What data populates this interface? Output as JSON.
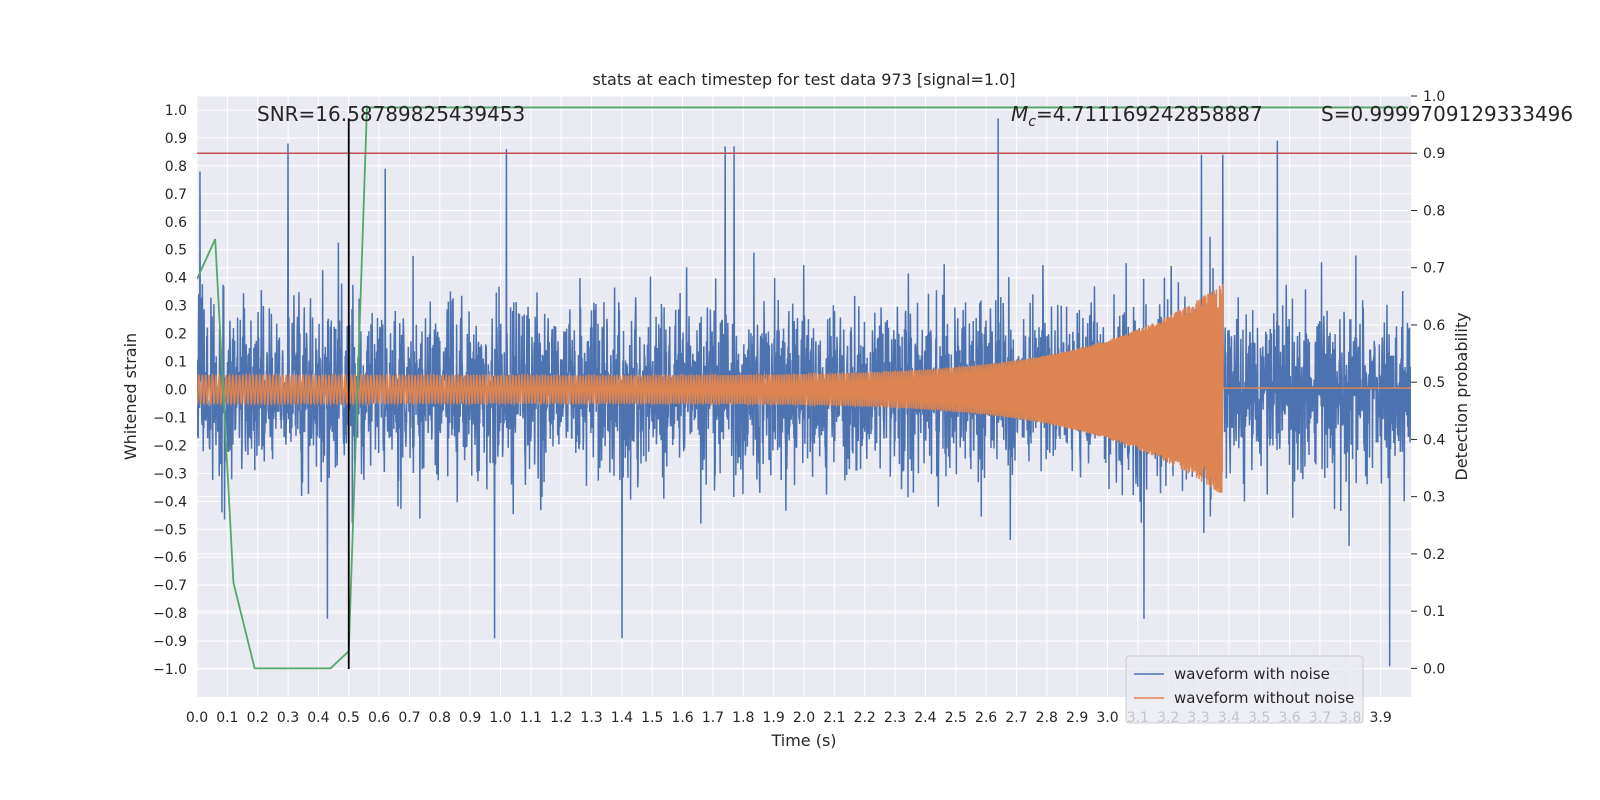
{
  "chart_data": {
    "type": "line",
    "title": "stats at each timestep for test data 973 [signal=1.0]",
    "xlabel": "Time (s)",
    "ylabel": "Whitened strain",
    "y2label": "Detection probability",
    "xlim": [
      0.0,
      4.0
    ],
    "ylim": [
      -1.1,
      1.05
    ],
    "y2lim": [
      -0.05,
      1.0
    ],
    "x_ticks": [
      0.0,
      0.1,
      0.2,
      0.3,
      0.4,
      0.5,
      0.6,
      0.7,
      0.8,
      0.9,
      1.0,
      1.1,
      1.2,
      1.3,
      1.4,
      1.5,
      1.6,
      1.7,
      1.8,
      1.9,
      2.0,
      2.1,
      2.2,
      2.3,
      2.4,
      2.5,
      2.6,
      2.7,
      2.8,
      2.9,
      3.0,
      3.1,
      3.2,
      3.3,
      3.4,
      3.5,
      3.6,
      3.7,
      3.8,
      3.9
    ],
    "y_ticks": [
      -1.0,
      -0.9,
      -0.8,
      -0.7,
      -0.6,
      -0.5,
      -0.4,
      -0.3,
      -0.2,
      -0.1,
      0.0,
      0.1,
      0.2,
      0.3,
      0.4,
      0.5,
      0.6,
      0.7,
      0.8,
      0.9,
      1.0
    ],
    "y2_ticks": [
      0.0,
      0.1,
      0.2,
      0.3,
      0.4,
      0.5,
      0.6,
      0.7,
      0.8,
      0.9,
      1.0
    ],
    "annotations": {
      "snr": "SNR=16.58789825439453",
      "mc_symbol": "M",
      "mc_sub": "c",
      "mc_value": "=4.711169242858887",
      "s": "S=0.9999709129333496"
    },
    "threshold": {
      "y2": 0.9,
      "color": "#c44e52"
    },
    "marker_line": {
      "x": 0.5,
      "y_range": [
        -1.0,
        0.97
      ],
      "color": "#000000"
    },
    "series": [
      {
        "name": "waveform with noise",
        "color": "#4c72b0",
        "description": "whitened strain noise, amplitude envelope ~0.4, peak spikes listed",
        "spikes": [
          {
            "x": 0.01,
            "y": 0.78
          },
          {
            "x": 0.3,
            "y": 0.88
          },
          {
            "x": 0.43,
            "y": -0.82
          },
          {
            "x": 0.62,
            "y": 0.79
          },
          {
            "x": 1.02,
            "y": 0.86
          },
          {
            "x": 0.98,
            "y": -0.89
          },
          {
            "x": 1.4,
            "y": -0.89
          },
          {
            "x": 1.74,
            "y": 0.87
          },
          {
            "x": 1.77,
            "y": 0.87
          },
          {
            "x": 2.64,
            "y": 0.97
          },
          {
            "x": 3.31,
            "y": 0.84
          },
          {
            "x": 3.38,
            "y": 0.84
          },
          {
            "x": 3.56,
            "y": 0.89
          },
          {
            "x": 3.93,
            "y": -0.99
          },
          {
            "x": 3.12,
            "y": -0.82
          }
        ],
        "envelope": 0.4
      },
      {
        "name": "waveform without noise",
        "color": "#dd8452",
        "description": "chirp: amplitude grows from 0.05 to 0.38, merger at t=3.38 s, then ~0",
        "amplitude_start": 0.05,
        "amplitude_peak": 0.38,
        "merger_time": 3.38,
        "freq_start_hz": 30,
        "freq_end_hz": 180
      },
      {
        "name": "detection probability",
        "color": "#55a868",
        "axis": "y2",
        "x": [
          0.0,
          0.06,
          0.12,
          0.19,
          0.25,
          0.31,
          0.44,
          0.5,
          0.56,
          0.62,
          1.0,
          2.0,
          3.0,
          3.99
        ],
        "values": [
          0.68,
          0.75,
          0.15,
          0.0,
          0.0,
          0.0,
          0.0,
          0.03,
          0.98,
          0.98,
          0.98,
          0.98,
          0.98,
          0.98
        ]
      }
    ],
    "legend": {
      "position": "lower right",
      "entries": [
        "waveform with noise",
        "waveform without noise"
      ]
    }
  }
}
